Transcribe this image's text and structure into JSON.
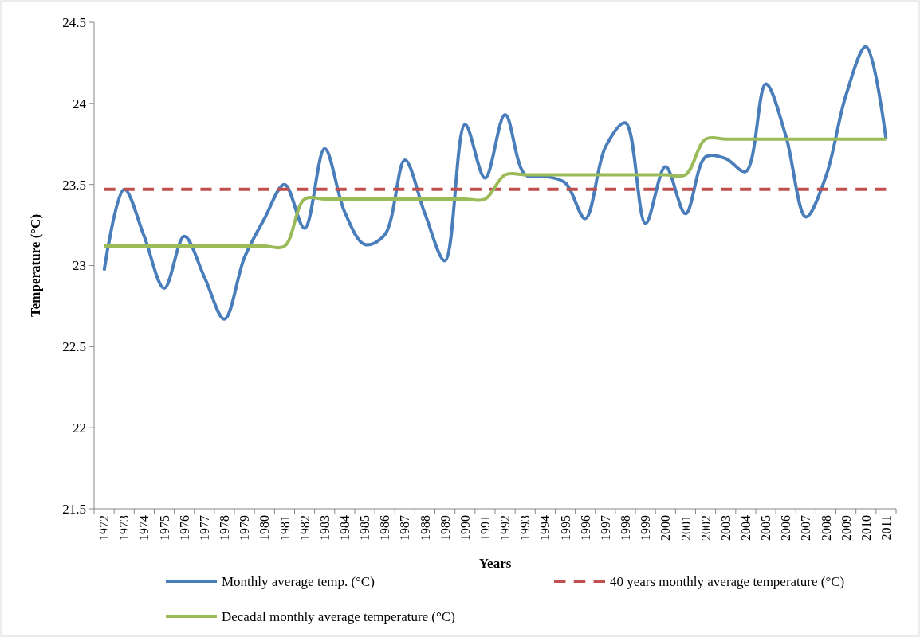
{
  "chart_data": {
    "type": "line",
    "xlabel": "Years",
    "ylabel": "Temperature (°C)",
    "categories": [
      "1972",
      "1973",
      "1974",
      "1975",
      "1976",
      "1977",
      "1978",
      "1979",
      "1980",
      "1981",
      "1982",
      "1983",
      "1984",
      "1985",
      "1986",
      "1987",
      "1988",
      "1989",
      "1990",
      "1991",
      "1992",
      "1993",
      "1994",
      "1995",
      "1996",
      "1997",
      "1998",
      "1999",
      "2000",
      "2001",
      "2002",
      "2003",
      "2004",
      "2005",
      "2006",
      "2007",
      "2008",
      "2009",
      "2010",
      "2011"
    ],
    "series": [
      {
        "name": "Monthly average temp. (°C)",
        "color": "#4a7ebb",
        "line_style": "solid",
        "values": [
          22.97,
          23.47,
          23.18,
          22.86,
          23.18,
          22.93,
          22.67,
          23.05,
          23.29,
          23.5,
          23.23,
          23.72,
          23.33,
          23.13,
          23.19,
          23.65,
          23.32,
          23.03,
          23.87,
          23.54,
          23.93,
          23.56,
          23.55,
          23.51,
          23.29,
          23.73,
          23.88,
          23.26,
          23.61,
          23.32,
          23.67,
          23.66,
          23.58,
          24.12,
          23.8,
          23.3,
          23.55,
          24.05,
          24.35,
          23.78
        ]
      },
      {
        "name": "40 years monthly average temperature (°C)",
        "color": "#c0504d",
        "line_style": "dashed",
        "values": [
          23.47,
          23.47,
          23.47,
          23.47,
          23.47,
          23.47,
          23.47,
          23.47,
          23.47,
          23.47,
          23.47,
          23.47,
          23.47,
          23.47,
          23.47,
          23.47,
          23.47,
          23.47,
          23.47,
          23.47,
          23.47,
          23.47,
          23.47,
          23.47,
          23.47,
          23.47,
          23.47,
          23.47,
          23.47,
          23.47,
          23.47,
          23.47,
          23.47,
          23.47,
          23.47,
          23.47,
          23.47,
          23.47,
          23.47,
          23.47
        ]
      },
      {
        "name": "Decadal monthly average temperature (°C)",
        "color": "#9bbb59",
        "line_style": "solid",
        "values": [
          23.12,
          23.12,
          23.12,
          23.12,
          23.12,
          23.12,
          23.12,
          23.12,
          23.12,
          23.12,
          23.41,
          23.41,
          23.41,
          23.41,
          23.41,
          23.41,
          23.41,
          23.41,
          23.41,
          23.41,
          23.56,
          23.56,
          23.56,
          23.56,
          23.56,
          23.56,
          23.56,
          23.56,
          23.56,
          23.56,
          23.78,
          23.78,
          23.78,
          23.78,
          23.78,
          23.78,
          23.78,
          23.78,
          23.78,
          23.78
        ]
      }
    ],
    "ylim": [
      21.5,
      24.5
    ],
    "yticks": [
      21.5,
      22,
      22.5,
      23,
      23.5,
      24,
      24.5
    ],
    "grid": false,
    "legend": "bottom",
    "marker": "none"
  }
}
